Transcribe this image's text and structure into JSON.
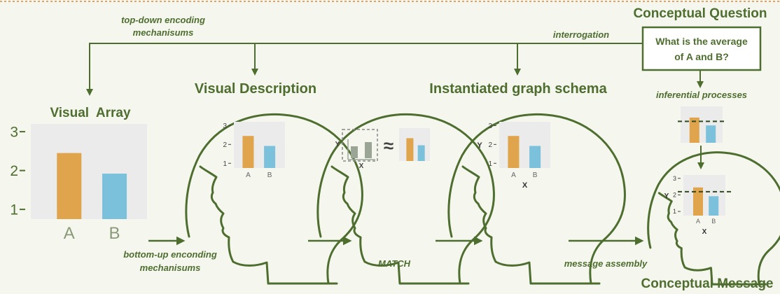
{
  "labels": {
    "top_down": [
      "top-down encoding",
      "mechanisums"
    ],
    "interrogation": "interrogation",
    "conceptual_question_title": "Conceptual Question",
    "question_text": [
      "What is the average",
      "of A and B?"
    ],
    "visual_array": "Visual  Array",
    "visual_description": "Visual Description",
    "instantiated_schema": "Instantiated graph schema",
    "inferential": "inferential processes",
    "bottom_up": [
      "bottom-up enconding",
      "mechanisums"
    ],
    "match": "MATCH",
    "message_assembly": "message assembly",
    "conceptual_message": "Conceptual Message",
    "approx": "≈",
    "y_letter": "Y",
    "x_letter": "X"
  },
  "chart_data": {
    "type": "bar",
    "categories": [
      "A",
      "B"
    ],
    "values": [
      2.45,
      1.92
    ],
    "ylim": [
      0.75,
      3.2
    ],
    "yticks": [
      1,
      2,
      3
    ],
    "colors": [
      "#e0a54c",
      "#7cc1db"
    ],
    "average": 2.19
  },
  "colors": {
    "green": "#4e6e2f",
    "panel": "#ebebeb",
    "bar_a": "#e0a54c",
    "bar_b": "#7cc1db",
    "gray_bar": "#9aa596",
    "background": "#f5f6ee"
  }
}
